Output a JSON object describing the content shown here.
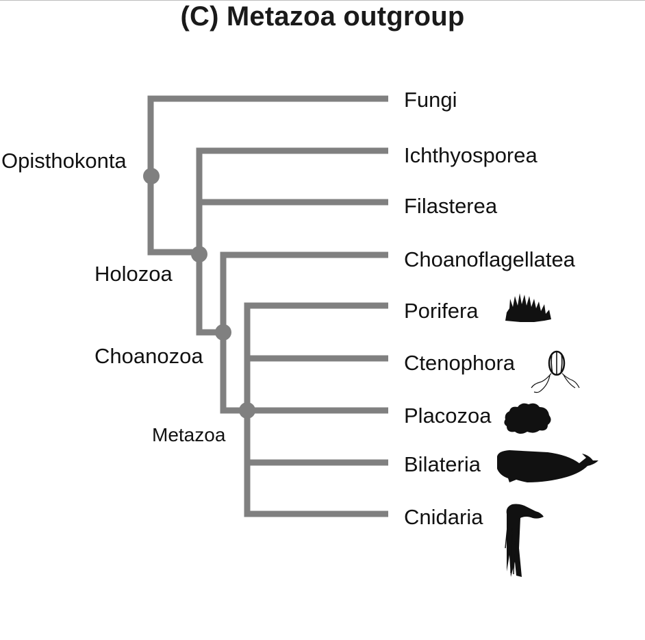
{
  "title": "(C) Metazoa outgroup",
  "branch_color": "#808080",
  "silhouette_color": "#111111",
  "clades": {
    "opisthokonta": "Opisthokonta",
    "holozoa": "Holozoa",
    "choanozoa": "Choanozoa",
    "metazoa": "Metazoa"
  },
  "taxa": [
    {
      "key": "fungi",
      "label": "Fungi",
      "silhouette": "none"
    },
    {
      "key": "ichthyosporea",
      "label": "Ichthyosporea",
      "silhouette": "none"
    },
    {
      "key": "filasterea",
      "label": "Filasterea",
      "silhouette": "none"
    },
    {
      "key": "choanoflagellatea",
      "label": "Choanoflagellatea",
      "silhouette": "none"
    },
    {
      "key": "porifera",
      "label": "Porifera",
      "silhouette": "sponge-icon"
    },
    {
      "key": "ctenophora",
      "label": "Ctenophora",
      "silhouette": "comb-jelly-icon"
    },
    {
      "key": "placozoa",
      "label": "Placozoa",
      "silhouette": "placozoan-icon"
    },
    {
      "key": "bilateria",
      "label": "Bilateria",
      "silhouette": "whale-icon"
    },
    {
      "key": "cnidaria",
      "label": "Cnidaria",
      "silhouette": "sea-anemone-icon"
    }
  ]
}
